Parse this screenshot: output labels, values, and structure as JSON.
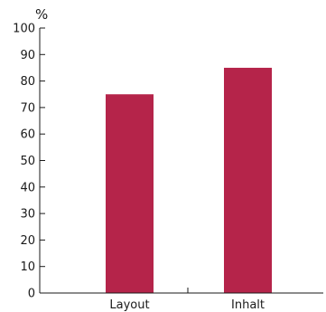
{
  "chart_data": {
    "type": "bar",
    "title": "",
    "xlabel": "",
    "ylabel": "%",
    "categories": [
      "Layout",
      "Inhalt"
    ],
    "values": [
      75,
      85
    ],
    "ylim": [
      0,
      100
    ],
    "yticks": [
      0,
      10,
      20,
      30,
      40,
      50,
      60,
      70,
      80,
      90,
      100
    ],
    "grid": false,
    "legend": false,
    "bar_color": "#b5244a",
    "axis_color": "#1a1a1a"
  }
}
